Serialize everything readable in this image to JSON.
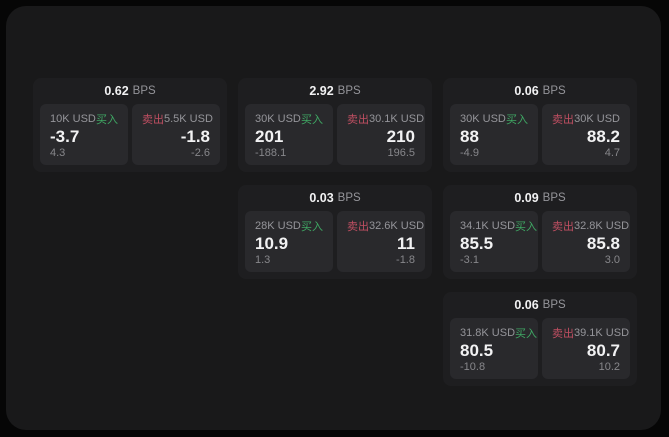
{
  "colors": {
    "page_bg": "#060606",
    "panel_bg": "#19191a",
    "card_bg": "#1e1e20",
    "tile_bg": "#29292c",
    "buy_green": "#3fa864",
    "sell_red": "#c04f62",
    "text_primary": "#f2f2f3",
    "text_secondary": "#95959a",
    "text_muted": "#87878b"
  },
  "labels": {
    "bps": "BPS",
    "buy": "买入",
    "sell": "卖出"
  },
  "cards": [
    {
      "row": 1,
      "col": 1,
      "spread": "0.62",
      "buy": {
        "amount": "10K USD",
        "price": "-3.7",
        "change": "4.3"
      },
      "sell": {
        "amount": "5.5K USD",
        "price": "-1.8",
        "change": "-2.6"
      }
    },
    {
      "row": 1,
      "col": 2,
      "spread": "2.92",
      "buy": {
        "amount": "30K USD",
        "price": "201",
        "change": "-188.1"
      },
      "sell": {
        "amount": "30.1K USD",
        "price": "210",
        "change": "196.5"
      }
    },
    {
      "row": 1,
      "col": 3,
      "spread": "0.06",
      "buy": {
        "amount": "30K USD",
        "price": "88",
        "change": "-4.9"
      },
      "sell": {
        "amount": "30K USD",
        "price": "88.2",
        "change": "4.7"
      }
    },
    {
      "row": 2,
      "col": 2,
      "spread": "0.03",
      "buy": {
        "amount": "28K USD",
        "price": "10.9",
        "change": "1.3"
      },
      "sell": {
        "amount": "32.6K USD",
        "price": "11",
        "change": "-1.8"
      }
    },
    {
      "row": 2,
      "col": 3,
      "spread": "0.09",
      "buy": {
        "amount": "34.1K USD",
        "price": "85.5",
        "change": "-3.1"
      },
      "sell": {
        "amount": "32.8K USD",
        "price": "85.8",
        "change": "3.0"
      }
    },
    {
      "row": 3,
      "col": 3,
      "spread": "0.06",
      "buy": {
        "amount": "31.8K USD",
        "price": "80.5",
        "change": "-10.8"
      },
      "sell": {
        "amount": "39.1K USD",
        "price": "80.7",
        "change": "10.2"
      }
    }
  ]
}
